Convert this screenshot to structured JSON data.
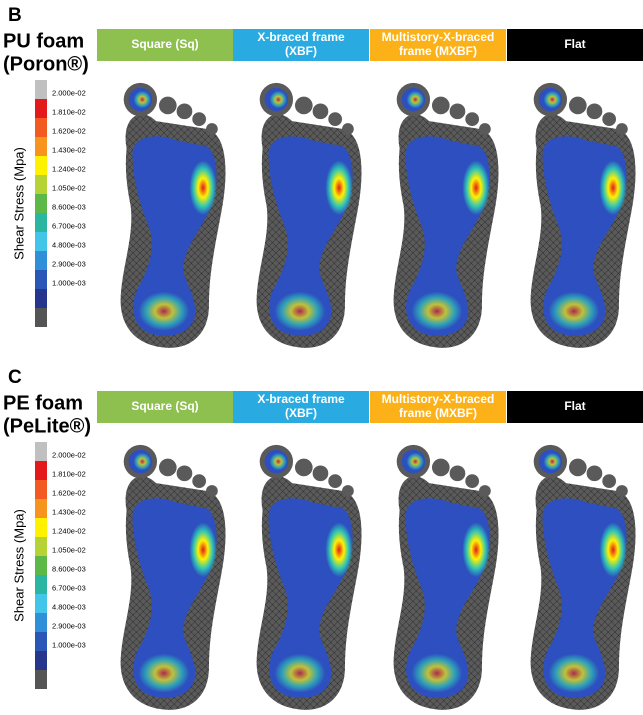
{
  "colorbar": {
    "label": "Shear Stress (Mpa)",
    "ticks": [
      "2.000e-02",
      "1.810e-02",
      "1.620e-02",
      "1.430e-02",
      "1.240e-02",
      "1.050e-02",
      "8.600e-03",
      "6.700e-03",
      "4.800e-03",
      "2.900e-03",
      "1.000e-03"
    ]
  },
  "panels": [
    {
      "letter": "B",
      "title": "PU foam",
      "material": "(Poron®)",
      "columns": [
        {
          "lines": [
            "Square (Sq)"
          ]
        },
        {
          "lines": [
            "X-braced frame",
            "(XBF)"
          ]
        },
        {
          "lines": [
            "Multistory-X-braced",
            "frame (MXBF)"
          ]
        },
        {
          "lines": [
            "Flat"
          ]
        }
      ]
    },
    {
      "letter": "C",
      "title": "PE foam",
      "material": "(PeLite®)",
      "columns": [
        {
          "lines": [
            "Square (Sq)"
          ]
        },
        {
          "lines": [
            "X-braced frame",
            "(XBF)"
          ]
        },
        {
          "lines": [
            "Multistory-X-braced",
            "frame (MXBF)"
          ]
        },
        {
          "lines": [
            "Flat"
          ]
        }
      ]
    }
  ]
}
